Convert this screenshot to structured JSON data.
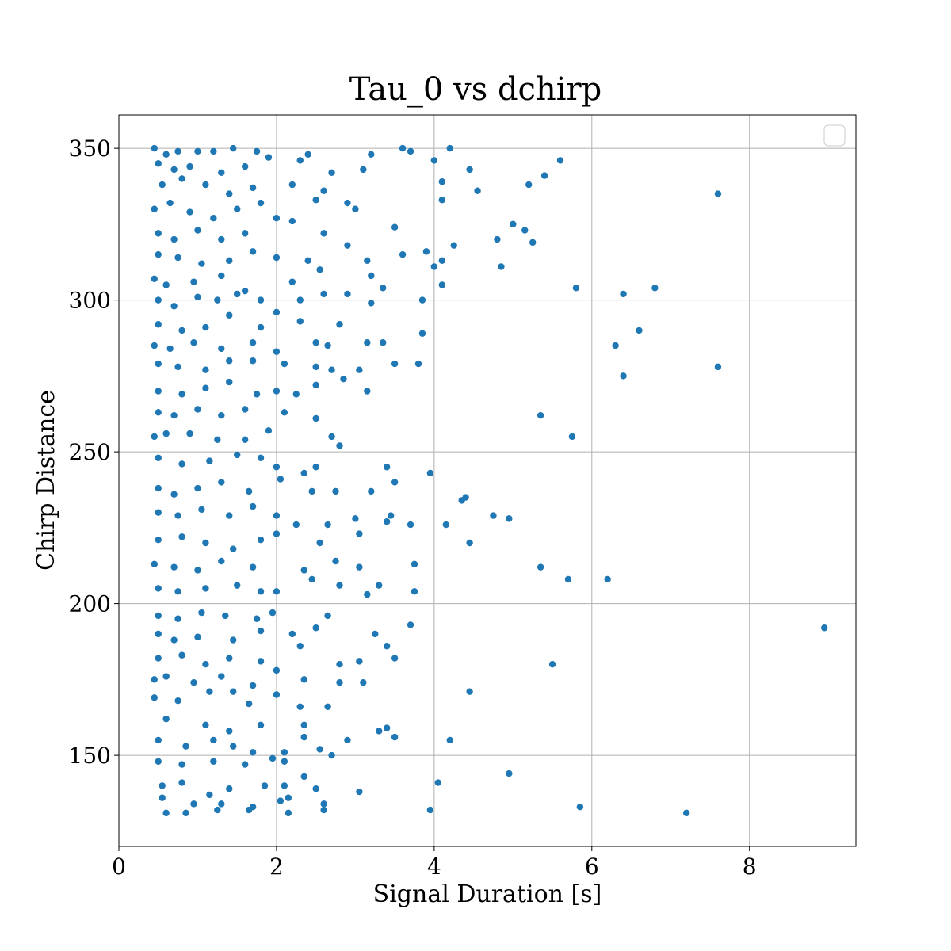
{
  "chart_data": {
    "type": "scatter",
    "title": "Tau_0 vs dchirp",
    "xlabel": "Signal Duration [s]",
    "ylabel": "Chirp Distance",
    "xlim": [
      0,
      9.35
    ],
    "ylim": [
      120,
      361
    ],
    "xticks": [
      0,
      2,
      4,
      6,
      8
    ],
    "yticks": [
      150,
      200,
      250,
      300,
      350
    ],
    "grid": true,
    "legend": "top-right (empty)",
    "colors": {
      "points": "#1f77b4",
      "grid": "#b0b0b0",
      "frame": "#000000"
    },
    "series": [
      {
        "points": [
          [
            0.45,
            350
          ],
          [
            0.6,
            348
          ],
          [
            0.75,
            349
          ],
          [
            1.0,
            349
          ],
          [
            1.2,
            349
          ],
          [
            1.45,
            350
          ],
          [
            1.75,
            349
          ],
          [
            2.4,
            348
          ],
          [
            3.2,
            348
          ],
          [
            3.6,
            350
          ],
          [
            3.7,
            349
          ],
          [
            4.2,
            350
          ],
          [
            0.5,
            345
          ],
          [
            0.7,
            343
          ],
          [
            0.9,
            344
          ],
          [
            1.3,
            342
          ],
          [
            1.6,
            344
          ],
          [
            1.9,
            347
          ],
          [
            2.3,
            346
          ],
          [
            2.7,
            342
          ],
          [
            3.1,
            343
          ],
          [
            4.0,
            346
          ],
          [
            4.45,
            343
          ],
          [
            5.6,
            346
          ],
          [
            0.55,
            338
          ],
          [
            0.8,
            340
          ],
          [
            1.1,
            338
          ],
          [
            1.4,
            335
          ],
          [
            1.7,
            337
          ],
          [
            2.2,
            338
          ],
          [
            2.6,
            336
          ],
          [
            2.9,
            332
          ],
          [
            4.1,
            339
          ],
          [
            4.55,
            336
          ],
          [
            5.2,
            338
          ],
          [
            5.4,
            341
          ],
          [
            7.6,
            335
          ],
          [
            0.45,
            330
          ],
          [
            0.65,
            332
          ],
          [
            0.9,
            329
          ],
          [
            1.2,
            327
          ],
          [
            1.5,
            330
          ],
          [
            1.8,
            332
          ],
          [
            2.0,
            327
          ],
          [
            2.5,
            333
          ],
          [
            3.0,
            330
          ],
          [
            4.1,
            333
          ],
          [
            0.5,
            322
          ],
          [
            0.7,
            320
          ],
          [
            1.0,
            323
          ],
          [
            1.3,
            320
          ],
          [
            1.6,
            322
          ],
          [
            2.2,
            326
          ],
          [
            2.6,
            322
          ],
          [
            3.5,
            324
          ],
          [
            4.8,
            320
          ],
          [
            5.0,
            325
          ],
          [
            5.15,
            323
          ],
          [
            5.25,
            319
          ],
          [
            0.5,
            315
          ],
          [
            0.75,
            314
          ],
          [
            1.05,
            312
          ],
          [
            1.4,
            313
          ],
          [
            1.7,
            316
          ],
          [
            2.0,
            314
          ],
          [
            2.4,
            313
          ],
          [
            2.9,
            318
          ],
          [
            3.15,
            313
          ],
          [
            3.6,
            315
          ],
          [
            3.9,
            316
          ],
          [
            4.1,
            313
          ],
          [
            4.25,
            318
          ],
          [
            0.45,
            307
          ],
          [
            0.6,
            305
          ],
          [
            0.95,
            306
          ],
          [
            1.3,
            308
          ],
          [
            1.6,
            303
          ],
          [
            2.2,
            306
          ],
          [
            2.55,
            310
          ],
          [
            3.2,
            308
          ],
          [
            4.0,
            311
          ],
          [
            4.1,
            305
          ],
          [
            4.85,
            311
          ],
          [
            5.8,
            304
          ],
          [
            0.5,
            300
          ],
          [
            0.7,
            298
          ],
          [
            1.0,
            301
          ],
          [
            1.25,
            300
          ],
          [
            1.5,
            302
          ],
          [
            1.8,
            300
          ],
          [
            2.0,
            296
          ],
          [
            2.3,
            300
          ],
          [
            2.6,
            302
          ],
          [
            2.9,
            302
          ],
          [
            3.2,
            299
          ],
          [
            3.35,
            304
          ],
          [
            3.85,
            300
          ],
          [
            6.4,
            302
          ],
          [
            6.8,
            304
          ],
          [
            0.5,
            292
          ],
          [
            0.8,
            290
          ],
          [
            1.1,
            291
          ],
          [
            1.4,
            295
          ],
          [
            1.8,
            291
          ],
          [
            2.3,
            293
          ],
          [
            2.8,
            292
          ],
          [
            3.85,
            289
          ],
          [
            6.6,
            290
          ],
          [
            0.45,
            285
          ],
          [
            0.65,
            284
          ],
          [
            0.95,
            286
          ],
          [
            1.3,
            284
          ],
          [
            1.7,
            286
          ],
          [
            2.0,
            283
          ],
          [
            2.5,
            286
          ],
          [
            2.65,
            285
          ],
          [
            3.15,
            286
          ],
          [
            3.35,
            286
          ],
          [
            6.3,
            285
          ],
          [
            0.5,
            279
          ],
          [
            0.75,
            278
          ],
          [
            1.1,
            277
          ],
          [
            1.4,
            280
          ],
          [
            1.7,
            280
          ],
          [
            2.1,
            279
          ],
          [
            2.5,
            278
          ],
          [
            2.7,
            277
          ],
          [
            3.05,
            277
          ],
          [
            3.5,
            279
          ],
          [
            3.8,
            279
          ],
          [
            6.4,
            275
          ],
          [
            7.6,
            278
          ],
          [
            0.5,
            270
          ],
          [
            0.8,
            269
          ],
          [
            1.1,
            271
          ],
          [
            1.4,
            273
          ],
          [
            1.75,
            269
          ],
          [
            2.0,
            270
          ],
          [
            2.25,
            269
          ],
          [
            2.5,
            272
          ],
          [
            2.85,
            274
          ],
          [
            3.15,
            270
          ],
          [
            0.5,
            263
          ],
          [
            0.7,
            262
          ],
          [
            1.0,
            264
          ],
          [
            1.3,
            262
          ],
          [
            1.6,
            264
          ],
          [
            2.1,
            263
          ],
          [
            2.5,
            261
          ],
          [
            5.35,
            262
          ],
          [
            0.45,
            255
          ],
          [
            0.6,
            256
          ],
          [
            0.9,
            256
          ],
          [
            1.25,
            254
          ],
          [
            1.6,
            254
          ],
          [
            1.9,
            257
          ],
          [
            2.7,
            255
          ],
          [
            2.8,
            252
          ],
          [
            5.75,
            255
          ],
          [
            0.5,
            248
          ],
          [
            0.8,
            246
          ],
          [
            1.15,
            247
          ],
          [
            1.5,
            249
          ],
          [
            1.8,
            248
          ],
          [
            2.0,
            245
          ],
          [
            2.35,
            243
          ],
          [
            2.5,
            245
          ],
          [
            3.4,
            245
          ],
          [
            3.95,
            243
          ],
          [
            0.5,
            238
          ],
          [
            0.7,
            236
          ],
          [
            1.0,
            238
          ],
          [
            1.3,
            240
          ],
          [
            1.65,
            237
          ],
          [
            2.05,
            241
          ],
          [
            2.45,
            237
          ],
          [
            2.75,
            237
          ],
          [
            3.2,
            237
          ],
          [
            3.5,
            240
          ],
          [
            4.35,
            234
          ],
          [
            4.4,
            235
          ],
          [
            0.5,
            230
          ],
          [
            0.75,
            229
          ],
          [
            1.05,
            231
          ],
          [
            1.4,
            229
          ],
          [
            1.7,
            232
          ],
          [
            2.0,
            229
          ],
          [
            2.25,
            226
          ],
          [
            2.65,
            226
          ],
          [
            3.0,
            228
          ],
          [
            3.4,
            227
          ],
          [
            3.45,
            229
          ],
          [
            3.7,
            226
          ],
          [
            4.15,
            226
          ],
          [
            4.75,
            229
          ],
          [
            4.95,
            228
          ],
          [
            0.5,
            221
          ],
          [
            0.8,
            222
          ],
          [
            1.1,
            220
          ],
          [
            1.45,
            218
          ],
          [
            1.8,
            221
          ],
          [
            2.0,
            223
          ],
          [
            2.55,
            220
          ],
          [
            3.05,
            223
          ],
          [
            4.45,
            220
          ],
          [
            0.45,
            213
          ],
          [
            0.7,
            212
          ],
          [
            1.0,
            211
          ],
          [
            1.3,
            214
          ],
          [
            1.7,
            212
          ],
          [
            2.35,
            211
          ],
          [
            2.75,
            214
          ],
          [
            3.05,
            212
          ],
          [
            3.75,
            213
          ],
          [
            5.35,
            212
          ],
          [
            0.5,
            205
          ],
          [
            0.75,
            204
          ],
          [
            1.1,
            205
          ],
          [
            1.5,
            206
          ],
          [
            1.8,
            204
          ],
          [
            2.0,
            204
          ],
          [
            2.45,
            208
          ],
          [
            2.8,
            206
          ],
          [
            3.15,
            203
          ],
          [
            3.3,
            206
          ],
          [
            3.75,
            204
          ],
          [
            5.7,
            208
          ],
          [
            6.2,
            208
          ],
          [
            0.5,
            196
          ],
          [
            0.75,
            195
          ],
          [
            1.05,
            197
          ],
          [
            1.35,
            196
          ],
          [
            1.75,
            195
          ],
          [
            1.95,
            197
          ],
          [
            2.65,
            196
          ],
          [
            0.5,
            190
          ],
          [
            0.7,
            188
          ],
          [
            1.0,
            189
          ],
          [
            1.45,
            188
          ],
          [
            1.8,
            191
          ],
          [
            2.2,
            190
          ],
          [
            2.5,
            192
          ],
          [
            3.25,
            190
          ],
          [
            3.7,
            193
          ],
          [
            8.95,
            192
          ],
          [
            0.5,
            182
          ],
          [
            0.8,
            183
          ],
          [
            1.1,
            180
          ],
          [
            1.4,
            182
          ],
          [
            1.8,
            181
          ],
          [
            2.3,
            186
          ],
          [
            2.8,
            180
          ],
          [
            3.05,
            181
          ],
          [
            3.4,
            186
          ],
          [
            3.5,
            182
          ],
          [
            5.5,
            180
          ],
          [
            0.45,
            175
          ],
          [
            0.6,
            176
          ],
          [
            0.95,
            174
          ],
          [
            1.3,
            176
          ],
          [
            1.7,
            173
          ],
          [
            2.0,
            178
          ],
          [
            2.35,
            175
          ],
          [
            2.8,
            174
          ],
          [
            3.1,
            174
          ],
          [
            4.45,
            171
          ],
          [
            0.45,
            169
          ],
          [
            0.75,
            168
          ],
          [
            1.15,
            171
          ],
          [
            1.45,
            171
          ],
          [
            1.65,
            167
          ],
          [
            2.0,
            170
          ],
          [
            2.3,
            166
          ],
          [
            2.65,
            166
          ],
          [
            0.6,
            162
          ],
          [
            1.1,
            160
          ],
          [
            1.4,
            158
          ],
          [
            1.8,
            160
          ],
          [
            2.35,
            160
          ],
          [
            3.4,
            159
          ],
          [
            0.5,
            155
          ],
          [
            0.85,
            153
          ],
          [
            1.2,
            155
          ],
          [
            1.45,
            153
          ],
          [
            1.7,
            151
          ],
          [
            2.1,
            151
          ],
          [
            2.35,
            156
          ],
          [
            2.55,
            152
          ],
          [
            2.9,
            155
          ],
          [
            3.3,
            158
          ],
          [
            3.5,
            156
          ],
          [
            4.2,
            155
          ],
          [
            0.5,
            148
          ],
          [
            0.8,
            147
          ],
          [
            1.2,
            148
          ],
          [
            1.6,
            147
          ],
          [
            1.95,
            149
          ],
          [
            2.1,
            148
          ],
          [
            2.7,
            150
          ],
          [
            0.55,
            140
          ],
          [
            0.8,
            141
          ],
          [
            1.15,
            137
          ],
          [
            1.4,
            139
          ],
          [
            1.85,
            140
          ],
          [
            2.1,
            140
          ],
          [
            2.35,
            143
          ],
          [
            2.5,
            139
          ],
          [
            3.05,
            138
          ],
          [
            4.05,
            141
          ],
          [
            4.95,
            144
          ],
          [
            0.55,
            136
          ],
          [
            0.95,
            134
          ],
          [
            1.3,
            134
          ],
          [
            1.7,
            133
          ],
          [
            2.05,
            135
          ],
          [
            2.15,
            136
          ],
          [
            2.6,
            134
          ],
          [
            0.6,
            131
          ],
          [
            0.85,
            131
          ],
          [
            1.25,
            132
          ],
          [
            1.65,
            132
          ],
          [
            2.15,
            131
          ],
          [
            2.6,
            132
          ],
          [
            3.95,
            132
          ],
          [
            5.85,
            133
          ],
          [
            7.2,
            131
          ]
        ]
      }
    ]
  }
}
